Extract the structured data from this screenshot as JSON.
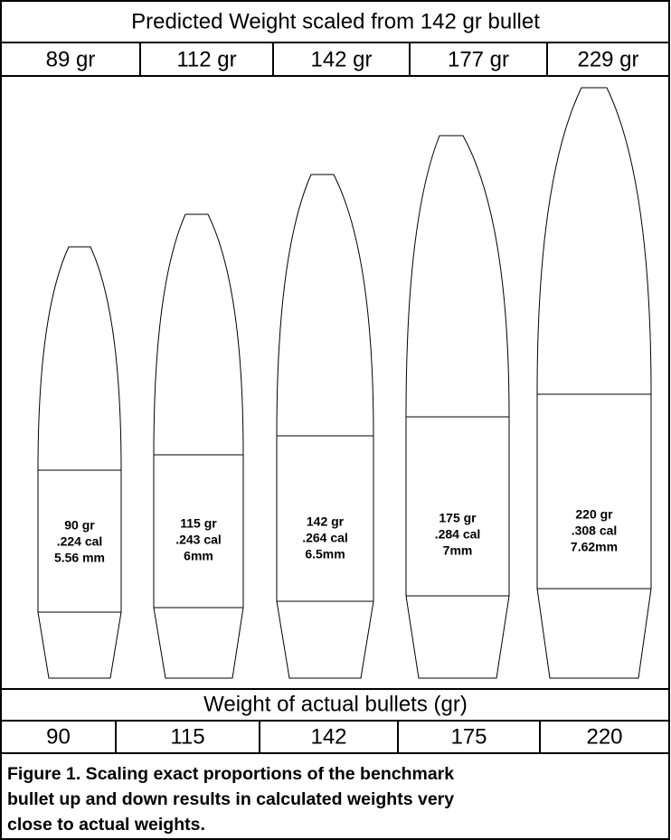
{
  "header": {
    "title": "Predicted Weight scaled from 142 gr bullet",
    "predicted": [
      "89 gr",
      "112 gr",
      "142 gr",
      "177 gr",
      "229 gr"
    ]
  },
  "bullets": [
    {
      "lines": [
        "90 gr",
        ".224 cal",
        "5.56 mm"
      ]
    },
    {
      "lines": [
        "115 gr",
        ".243 cal",
        "6mm"
      ]
    },
    {
      "lines": [
        "142 gr",
        ".264 cal",
        "6.5mm"
      ]
    },
    {
      "lines": [
        "175 gr",
        ".284 cal",
        "7mm"
      ]
    },
    {
      "lines": [
        "220 gr",
        ".308 cal",
        "7.62mm"
      ]
    }
  ],
  "actual": {
    "title": "Weight of actual bullets (gr)",
    "values": [
      "90",
      "115",
      "142",
      "175",
      "220"
    ]
  },
  "caption": {
    "lines": [
      "Figure 1. Scaling exact proportions of the benchmark",
      "bullet up and down results in calculated weights very",
      "close to actual weights."
    ]
  }
}
